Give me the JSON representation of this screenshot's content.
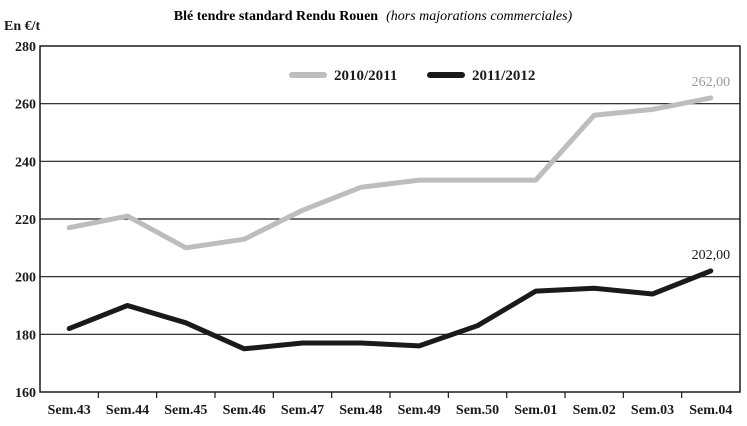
{
  "chart_data": {
    "type": "line",
    "title": "Blé tendre standard Rendu Rouen",
    "subtitle": "(hors majorations commerciales)",
    "ylabel": "En €/t",
    "xlabel": "",
    "ylim": [
      160,
      280
    ],
    "yticks": [
      "160",
      "180",
      "200",
      "220",
      "240",
      "260",
      "280"
    ],
    "grid": true,
    "legend_position": "top-center",
    "categories": [
      "Sem.43",
      "Sem.44",
      "Sem.45",
      "Sem.46",
      "Sem.47",
      "Sem.48",
      "Sem.49",
      "Sem.50",
      "Sem.01",
      "Sem.02",
      "Sem.03",
      "Sem.04"
    ],
    "series": [
      {
        "name": "2010/2011",
        "color": "#bdbdbd",
        "values": [
          217,
          221,
          210,
          213,
          223,
          231,
          233.5,
          233.5,
          233.5,
          256,
          258,
          262
        ],
        "end_label": "262,00"
      },
      {
        "name": "2011/2012",
        "color": "#1a1a1a",
        "values": [
          182,
          190,
          184,
          175,
          177,
          177,
          176,
          183,
          195,
          196,
          194,
          202
        ],
        "end_label": "202,00"
      }
    ]
  }
}
